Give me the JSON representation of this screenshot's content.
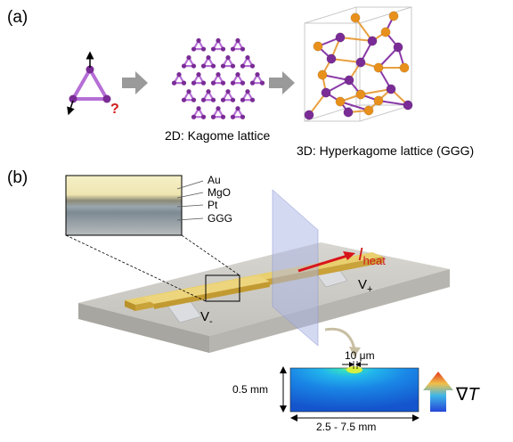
{
  "panel_a": {
    "label": "(a)",
    "question_mark": "?",
    "kagome_caption": "2D: Kagome lattice",
    "hyperkagome_caption": "3D: Hyperkagome lattice (GGG)",
    "colors": {
      "purple": "#7a2c96",
      "light_purple": "#b56fd6",
      "orange": "#e8901c",
      "arrow_gray": "#9a9a9a",
      "red": "#d21a1a"
    }
  },
  "panel_b": {
    "label": "(b)",
    "layers": [
      "Au",
      "MgO",
      "Pt",
      "GGG"
    ],
    "current_symbol": "I",
    "current_subscript": "heat",
    "v_plus": "V",
    "v_plus_sub": "+",
    "v_minus": "V",
    "v_minus_sub": "-",
    "width_label": "10 μm",
    "depth_label": "0.5 mm",
    "length_label": "2.5 - 7.5 mm",
    "gradient_symbol": "∇",
    "gradient_var": "T",
    "colors": {
      "substrate": "#c9c7c1",
      "gold": "#e0be4e",
      "plane": "#a9b4e6",
      "heat_arrow": "#d8141b"
    }
  }
}
